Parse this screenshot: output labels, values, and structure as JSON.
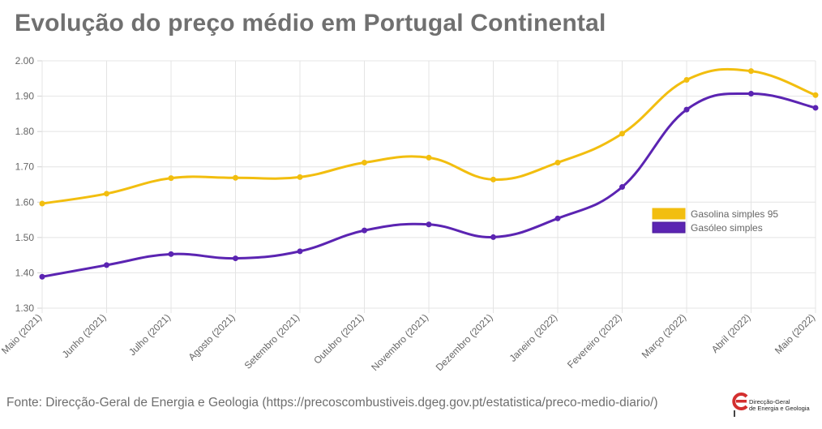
{
  "title": "Evolução do preço médio em Portugal Continental",
  "source": "Fonte: Direcção-Geral de Energia e Geologia (https://precoscombustiveis.dgeg.gov.pt/estatistica/preco-medio-diario/)",
  "logo": {
    "line1": "Direcção-Geral",
    "line2": "de Energia e Geologia",
    "accent_color": "#d32f2f"
  },
  "chart_data": {
    "type": "line",
    "categories": [
      "Maio (2021)",
      "Junho (2021)",
      "Julho (2021)",
      "Agosto (2021)",
      "Setembro (2021)",
      "Outubro (2021)",
      "Novembro (2021)",
      "Dezembro (2021)",
      "Janeiro (2022)",
      "Fevereiro (2022)",
      "Março (2022)",
      "Abril (2022)",
      "Maio (2022)"
    ],
    "series": [
      {
        "name": "Gasolina simples 95",
        "color": "#f2be0f",
        "values": [
          1.596,
          1.624,
          1.668,
          1.669,
          1.671,
          1.712,
          1.726,
          1.664,
          1.712,
          1.794,
          1.946,
          1.971,
          1.903
        ]
      },
      {
        "name": "Gasóleo simples",
        "color": "#5b24b2",
        "values": [
          1.389,
          1.422,
          1.453,
          1.441,
          1.461,
          1.52,
          1.537,
          1.501,
          1.554,
          1.643,
          1.862,
          1.907,
          1.867
        ]
      }
    ],
    "ylim": [
      1.3,
      2.0
    ],
    "yticks": [
      "1.30",
      "1.40",
      "1.50",
      "1.60",
      "1.70",
      "1.80",
      "1.90",
      "2.00"
    ],
    "grid": true,
    "legend_position": "right",
    "xlabel": "",
    "ylabel": ""
  }
}
